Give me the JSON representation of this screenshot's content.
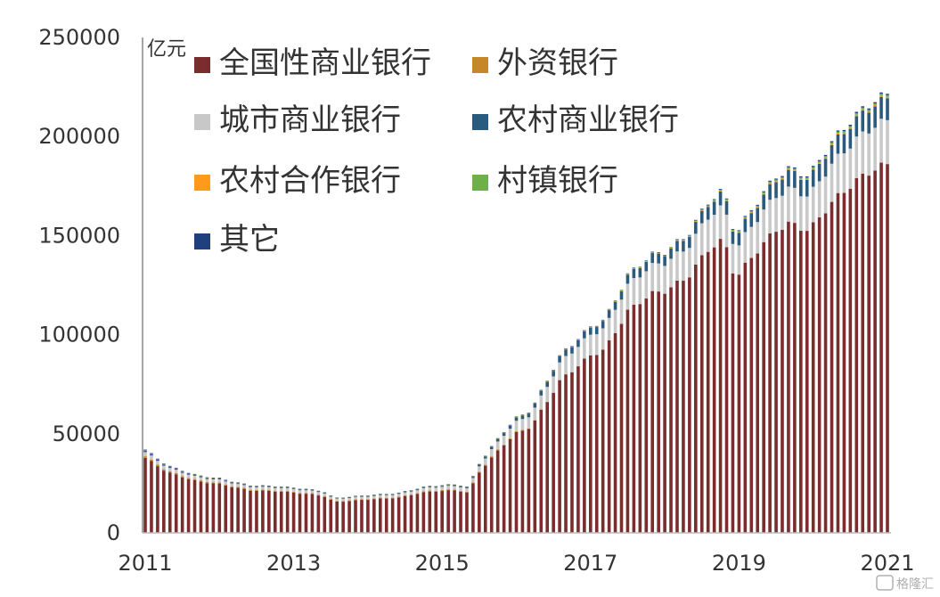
{
  "chart_data": {
    "type": "bar",
    "stacked": true,
    "unit_label": "亿元",
    "ylim": [
      0,
      250000
    ],
    "y_ticks": [
      "0",
      "50000",
      "100000",
      "150000",
      "200000",
      "250000"
    ],
    "x_ticks": [
      "2011",
      "2013",
      "2015",
      "2017",
      "2019",
      "2021"
    ],
    "x_range": [
      2011.0,
      2021.0
    ],
    "grid": false,
    "legend_position": "top-left",
    "series": [
      {
        "name": "全国性商业银行",
        "color": "#7B2C2C"
      },
      {
        "name": "外资银行",
        "color": "#C8862A"
      },
      {
        "name": "城市商业银行",
        "color": "#C8C8C8"
      },
      {
        "name": "农村商业银行",
        "color": "#2A5A7E"
      },
      {
        "name": "农村合作银行",
        "color": "#FF9A1A"
      },
      {
        "name": "村镇银行",
        "color": "#6DB04A"
      },
      {
        "name": "其它",
        "color": "#1F3F7F"
      }
    ],
    "totals_anchor": [
      [
        2011.0,
        42000
      ],
      [
        2011.3,
        34000
      ],
      [
        2011.7,
        29000
      ],
      [
        2012.0,
        27500
      ],
      [
        2012.4,
        24000
      ],
      [
        2012.8,
        23500
      ],
      [
        2013.2,
        22000
      ],
      [
        2013.4,
        21000
      ],
      [
        2013.55,
        17500
      ],
      [
        2014.0,
        19000
      ],
      [
        2014.4,
        20000
      ],
      [
        2014.8,
        23500
      ],
      [
        2015.2,
        24500
      ],
      [
        2015.35,
        23000
      ],
      [
        2015.5,
        35000
      ],
      [
        2015.8,
        50000
      ],
      [
        2016.0,
        58000
      ],
      [
        2016.2,
        62000
      ],
      [
        2016.4,
        76000
      ],
      [
        2016.6,
        90000
      ],
      [
        2017.0,
        104000
      ],
      [
        2017.2,
        108000
      ],
      [
        2017.5,
        130000
      ],
      [
        2017.8,
        140000
      ],
      [
        2018.0,
        142000
      ],
      [
        2018.3,
        150000
      ],
      [
        2018.6,
        168000
      ],
      [
        2018.8,
        173000
      ],
      [
        2018.95,
        150000
      ],
      [
        2019.2,
        165000
      ],
      [
        2019.5,
        180000
      ],
      [
        2019.7,
        184000
      ],
      [
        2019.95,
        180000
      ],
      [
        2020.2,
        195000
      ],
      [
        2020.5,
        208000
      ],
      [
        2020.8,
        218000
      ],
      [
        2021.0,
        221000
      ]
    ],
    "share_anchor": [
      [
        2011.0,
        0.9,
        0.02,
        0.05,
        0.02
      ],
      [
        2015.0,
        0.88,
        0.02,
        0.07,
        0.02
      ],
      [
        2016.5,
        0.86,
        0.0,
        0.1,
        0.035
      ],
      [
        2018.0,
        0.86,
        0.0,
        0.1,
        0.035
      ],
      [
        2019.5,
        0.85,
        0.0,
        0.095,
        0.045
      ],
      [
        2021.0,
        0.84,
        0.0,
        0.1,
        0.05
      ]
    ]
  },
  "watermark": "格隆汇"
}
